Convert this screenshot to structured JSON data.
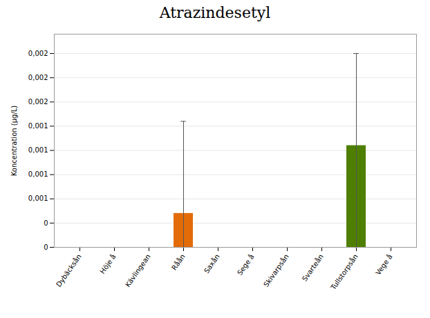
{
  "chart_data": {
    "type": "bar",
    "title": "Atrazindesetyl",
    "ylabel": "Koncentration (µg/L)",
    "categories": [
      "Dybäcksån",
      "Höje å",
      "Kävlingean",
      "Råån",
      "Saxån",
      "Sege å",
      "Skivarpsån",
      "Svarteån",
      "Tullstorpsån",
      "Vege å"
    ],
    "values": [
      0,
      0,
      0,
      0.00035,
      0,
      0,
      0,
      0,
      0.00105,
      0
    ],
    "errors_up": [
      0,
      0,
      0,
      0.00095,
      0,
      0,
      0,
      0,
      0.00095,
      0
    ],
    "errors_down": [
      0,
      0,
      0,
      0.00035,
      0,
      0,
      0,
      0,
      0.00105,
      0
    ],
    "colors": [
      "#4472C4",
      "#4472C4",
      "#4472C4",
      "#E36C09",
      "#4472C4",
      "#4472C4",
      "#4472C4",
      "#4472C4",
      "#4F7F00",
      "#4472C4"
    ],
    "ylim": [
      0,
      0.0022
    ],
    "yticks": [
      0,
      {
        "value": 0.00025,
        "label": "0"
      },
      {
        "value": 0.0005,
        "label": "0,001"
      },
      {
        "value": 0.00075,
        "label": "0,001"
      },
      {
        "value": 0.001,
        "label": "0,001"
      },
      {
        "value": 0.00125,
        "label": "0,001"
      },
      {
        "value": 0.0015,
        "label": "0,002"
      },
      {
        "value": 0.00175,
        "label": "0,002"
      },
      {
        "value": 0.002,
        "label": "0,002"
      }
    ],
    "grid": true
  }
}
